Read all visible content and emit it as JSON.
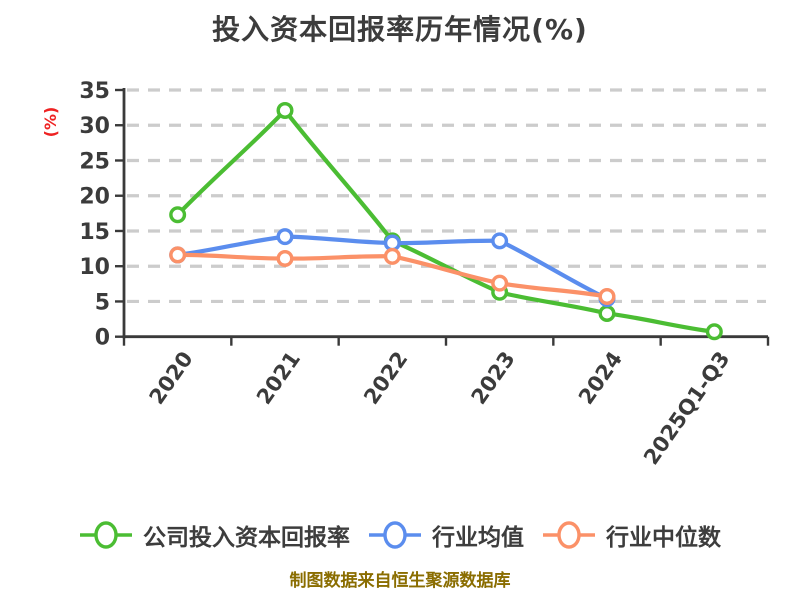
{
  "title": "投入资本回报率历年情况(%)",
  "footer": "制图数据来自恒生聚源数据库",
  "colors": {
    "background": "#ffffff",
    "title": "#3c3c3c",
    "axis": "#3a3a3a",
    "grid": "#cccccc",
    "tick_label": "#3b3b3b",
    "ylabel": "#ee2222",
    "footer": "#8a6d00",
    "legend_text": "#3d3d3d",
    "marker_fill": "#ffffff"
  },
  "chart_data": {
    "type": "line",
    "title": "投入资本回报率历年情况(%)",
    "xlabel": "",
    "ylabel": "(%)",
    "categories": [
      "2020",
      "2021",
      "2022",
      "2023",
      "2024",
      "2025Q1-Q3"
    ],
    "series": [
      {
        "name": "公司投入资本回报率",
        "color": "#4bbd33",
        "values": [
          17.3,
          32.1,
          13.6,
          6.3,
          3.3,
          0.7
        ]
      },
      {
        "name": "行业均值",
        "color": "#5b8dee",
        "values": [
          11.6,
          14.2,
          13.3,
          13.6,
          5.4,
          null
        ]
      },
      {
        "name": "行业中位数",
        "color": "#fb9168",
        "values": [
          11.6,
          11.1,
          11.4,
          7.6,
          5.7,
          null
        ]
      }
    ],
    "ylim": [
      0,
      35
    ],
    "yticks": [
      0,
      5,
      10,
      15,
      20,
      25,
      30,
      35
    ],
    "grid": "horizontal-dashed",
    "legend_position": "bottom",
    "marker_style": "open-circle",
    "x_tick_label_rotation_deg": 55
  }
}
